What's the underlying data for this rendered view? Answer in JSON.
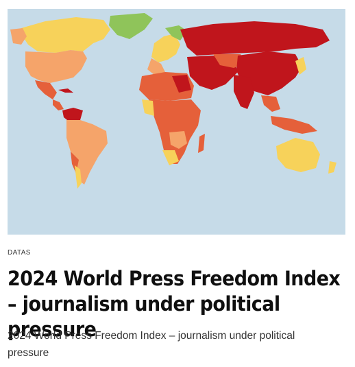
{
  "article": {
    "category": "DATAS",
    "title": "2024 World Press Freedom Index – journalism under political pressure",
    "excerpt": "2024 World Press Freedom Index – journalism under political pressure"
  },
  "colors": {
    "ocean": "#c6dbe8",
    "good": "#8fc45a",
    "satisfactory": "#f7d25a",
    "problematic": "#f5a46a",
    "difficult": "#e5603a",
    "very_serious": "#c0151c"
  }
}
